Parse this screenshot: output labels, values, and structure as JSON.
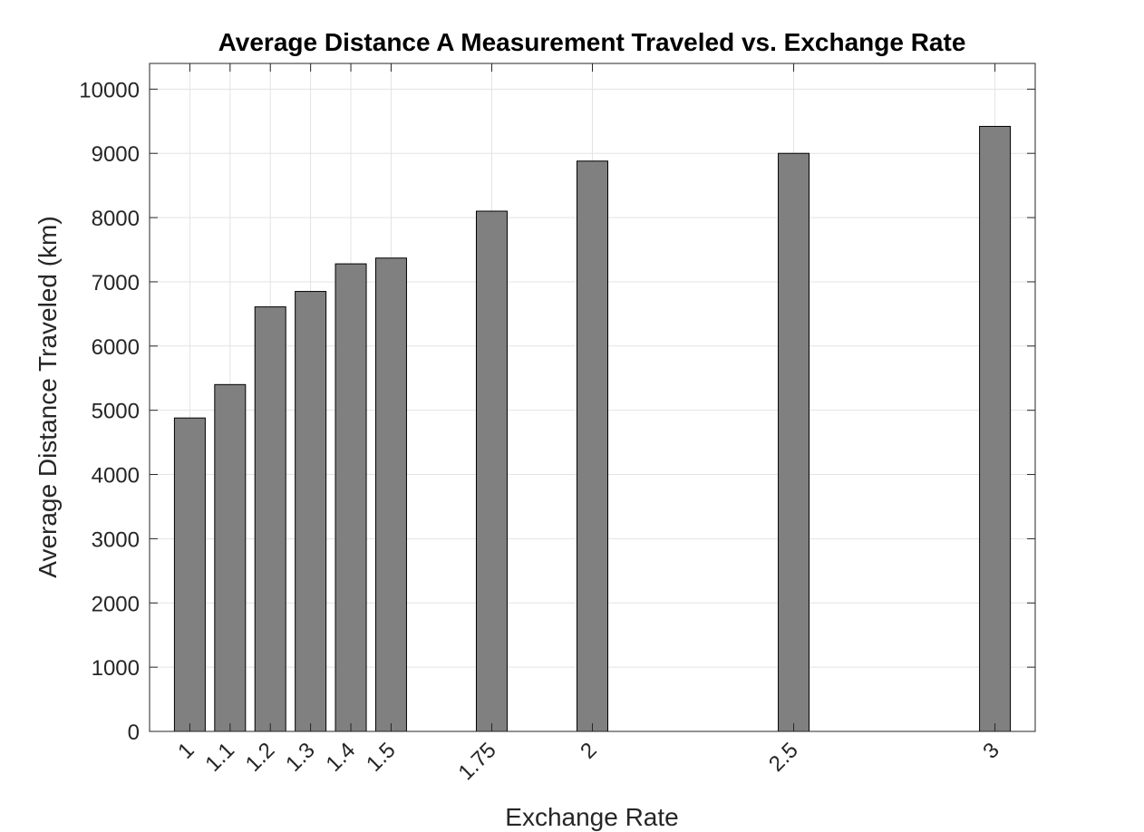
{
  "chart_data": {
    "type": "bar",
    "title": "Average Distance A Measurement Traveled vs. Exchange Rate",
    "xlabel": "Exchange Rate",
    "ylabel": "Average Distance Traveled (km)",
    "x": [
      1,
      1.1,
      1.2,
      1.3,
      1.4,
      1.5,
      1.75,
      2,
      2.5,
      3
    ],
    "x_tick_labels": [
      "1",
      "1.1",
      "1.2",
      "1.3",
      "1.4",
      "1.5",
      "1.75",
      "2",
      "2.5",
      "3"
    ],
    "values": [
      4880,
      5400,
      6610,
      6850,
      7280,
      7370,
      8100,
      8880,
      9000,
      9420
    ],
    "xlim": [
      0.9,
      3.1
    ],
    "ylim": [
      0,
      10400
    ],
    "y_ticks": [
      0,
      1000,
      2000,
      3000,
      4000,
      5000,
      6000,
      7000,
      8000,
      9000,
      10000
    ],
    "grid": true,
    "bar_color": "#808080",
    "bar_edge_color": "#000000"
  }
}
